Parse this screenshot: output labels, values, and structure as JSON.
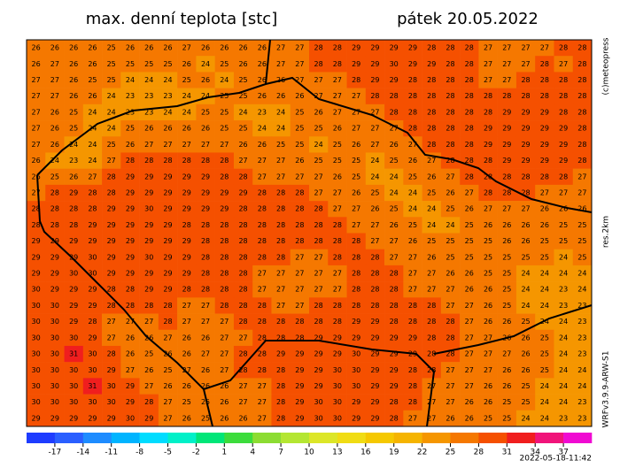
{
  "header": {
    "title": "max. denní teplota [stc]",
    "date": "pátek 20.05.2022"
  },
  "side": {
    "copyright": "(c)meteopress",
    "resolution": "res.2km",
    "model": "WRFv3.9.9-ARW-S1"
  },
  "footer": {
    "timestamp": "2022-05-18-11:42"
  },
  "colorbar": {
    "bins": [
      -20,
      -17,
      -14,
      -11,
      -8,
      -5,
      -2,
      1,
      4,
      7,
      10,
      13,
      16,
      19,
      22,
      25,
      28,
      31,
      34,
      37,
      40
    ],
    "colors": [
      "#1e3cff",
      "#2a5fff",
      "#1e8cff",
      "#00b4ff",
      "#00dcff",
      "#00f0c8",
      "#00e678",
      "#3cdc3c",
      "#8cdc32",
      "#b4e632",
      "#dce628",
      "#f0dc14",
      "#f5c800",
      "#f5b400",
      "#f59600",
      "#f57800",
      "#f55000",
      "#f01e1e",
      "#f0147a",
      "#f00ad2"
    ],
    "ticks": [
      -17,
      -14,
      -11,
      -8,
      -5,
      -2,
      1,
      4,
      7,
      10,
      13,
      16,
      19,
      22,
      25,
      28,
      31,
      34,
      37
    ]
  },
  "grid": {
    "rows": [
      [
        26,
        26,
        26,
        26,
        25,
        26,
        26,
        26,
        27,
        26,
        26,
        26,
        26,
        27,
        27,
        28,
        28,
        29,
        29,
        29,
        29,
        28,
        28,
        28,
        27,
        27,
        27,
        27,
        28,
        28
      ],
      [
        26,
        27,
        26,
        26,
        25,
        25,
        25,
        25,
        26,
        24,
        25,
        26,
        26,
        27,
        27,
        28,
        28,
        29,
        29,
        30,
        29,
        29,
        28,
        28,
        27,
        27,
        27,
        28,
        27,
        28
      ],
      [
        27,
        27,
        26,
        25,
        25,
        24,
        24,
        24,
        25,
        26,
        24,
        25,
        26,
        26,
        27,
        27,
        27,
        28,
        29,
        29,
        28,
        28,
        28,
        28,
        27,
        27,
        28,
        28,
        28,
        28
      ],
      [
        27,
        27,
        26,
        26,
        24,
        23,
        23,
        23,
        24,
        24,
        25,
        25,
        26,
        26,
        26,
        27,
        27,
        27,
        28,
        28,
        28,
        28,
        28,
        28,
        28,
        28,
        28,
        28,
        28,
        28
      ],
      [
        27,
        26,
        25,
        24,
        24,
        23,
        23,
        24,
        24,
        25,
        25,
        24,
        23,
        24,
        25,
        26,
        27,
        27,
        27,
        28,
        28,
        28,
        28,
        28,
        28,
        29,
        29,
        29,
        28,
        28
      ],
      [
        27,
        26,
        25,
        24,
        24,
        25,
        26,
        26,
        26,
        26,
        25,
        25,
        24,
        24,
        25,
        25,
        26,
        27,
        27,
        27,
        28,
        28,
        28,
        28,
        29,
        29,
        29,
        29,
        29,
        28
      ],
      [
        27,
        26,
        24,
        24,
        25,
        26,
        27,
        27,
        27,
        27,
        27,
        26,
        26,
        25,
        25,
        24,
        25,
        26,
        27,
        26,
        27,
        28,
        28,
        28,
        29,
        29,
        29,
        29,
        29,
        28
      ],
      [
        26,
        24,
        23,
        24,
        27,
        28,
        28,
        28,
        28,
        28,
        28,
        27,
        27,
        27,
        26,
        25,
        25,
        25,
        24,
        25,
        26,
        27,
        28,
        28,
        28,
        29,
        29,
        29,
        29,
        28
      ],
      [
        26,
        25,
        26,
        27,
        28,
        29,
        29,
        29,
        29,
        29,
        28,
        28,
        27,
        27,
        27,
        27,
        26,
        25,
        24,
        24,
        25,
        26,
        27,
        28,
        28,
        28,
        28,
        28,
        28,
        27
      ],
      [
        27,
        28,
        29,
        28,
        28,
        29,
        29,
        29,
        29,
        29,
        29,
        29,
        28,
        28,
        28,
        27,
        27,
        26,
        25,
        24,
        24,
        25,
        26,
        27,
        28,
        28,
        28,
        27,
        27,
        27
      ],
      [
        28,
        28,
        28,
        28,
        29,
        29,
        30,
        29,
        29,
        29,
        29,
        28,
        28,
        28,
        28,
        28,
        27,
        27,
        26,
        25,
        24,
        24,
        25,
        26,
        27,
        27,
        27,
        26,
        26,
        26
      ],
      [
        28,
        28,
        28,
        29,
        29,
        29,
        29,
        29,
        28,
        28,
        28,
        28,
        28,
        28,
        28,
        28,
        28,
        27,
        27,
        26,
        25,
        24,
        24,
        25,
        26,
        26,
        26,
        26,
        25,
        25
      ],
      [
        29,
        29,
        29,
        29,
        29,
        29,
        29,
        29,
        29,
        28,
        28,
        28,
        28,
        28,
        28,
        28,
        28,
        28,
        27,
        27,
        26,
        25,
        25,
        25,
        25,
        26,
        26,
        25,
        25,
        25
      ],
      [
        29,
        29,
        29,
        30,
        29,
        29,
        30,
        29,
        29,
        28,
        28,
        28,
        28,
        28,
        27,
        27,
        28,
        28,
        28,
        27,
        27,
        26,
        25,
        25,
        25,
        25,
        25,
        25,
        24,
        25
      ],
      [
        29,
        29,
        30,
        30,
        29,
        29,
        29,
        29,
        29,
        28,
        28,
        28,
        27,
        27,
        27,
        27,
        27,
        28,
        28,
        28,
        27,
        27,
        26,
        26,
        25,
        25,
        24,
        24,
        24,
        24
      ],
      [
        30,
        29,
        29,
        29,
        28,
        28,
        29,
        29,
        28,
        28,
        28,
        28,
        27,
        27,
        27,
        27,
        27,
        28,
        28,
        28,
        27,
        27,
        27,
        26,
        26,
        25,
        24,
        24,
        23,
        24
      ],
      [
        30,
        30,
        29,
        29,
        28,
        28,
        28,
        28,
        27,
        27,
        28,
        28,
        28,
        27,
        27,
        28,
        28,
        28,
        28,
        28,
        28,
        28,
        27,
        27,
        26,
        25,
        24,
        24,
        23,
        23
      ],
      [
        30,
        30,
        29,
        28,
        27,
        27,
        27,
        28,
        27,
        27,
        27,
        28,
        28,
        28,
        28,
        28,
        28,
        29,
        29,
        28,
        28,
        28,
        28,
        27,
        26,
        26,
        25,
        24,
        24,
        23
      ],
      [
        30,
        30,
        30,
        29,
        27,
        26,
        26,
        27,
        26,
        26,
        27,
        27,
        28,
        28,
        28,
        29,
        29,
        29,
        29,
        29,
        29,
        28,
        28,
        27,
        27,
        26,
        26,
        25,
        24,
        23
      ],
      [
        30,
        30,
        31,
        30,
        28,
        26,
        25,
        26,
        26,
        27,
        27,
        28,
        28,
        29,
        29,
        29,
        29,
        30,
        29,
        29,
        29,
        28,
        28,
        27,
        27,
        27,
        26,
        25,
        24,
        23
      ],
      [
        30,
        30,
        30,
        30,
        29,
        27,
        26,
        25,
        27,
        26,
        27,
        28,
        28,
        28,
        29,
        29,
        30,
        30,
        29,
        29,
        28,
        28,
        27,
        27,
        27,
        26,
        26,
        25,
        24,
        24
      ],
      [
        30,
        30,
        30,
        31,
        30,
        29,
        27,
        26,
        26,
        26,
        26,
        27,
        27,
        28,
        29,
        29,
        30,
        30,
        29,
        29,
        28,
        27,
        27,
        27,
        26,
        26,
        25,
        24,
        24,
        24
      ],
      [
        30,
        30,
        30,
        30,
        30,
        29,
        28,
        27,
        25,
        25,
        26,
        27,
        27,
        28,
        29,
        30,
        30,
        29,
        29,
        28,
        28,
        27,
        27,
        26,
        26,
        25,
        25,
        24,
        24,
        23
      ],
      [
        29,
        29,
        29,
        29,
        29,
        30,
        29,
        27,
        26,
        25,
        26,
        26,
        27,
        28,
        29,
        30,
        30,
        29,
        29,
        28,
        27,
        27,
        26,
        26,
        25,
        25,
        24,
        24,
        23,
        23
      ]
    ]
  }
}
